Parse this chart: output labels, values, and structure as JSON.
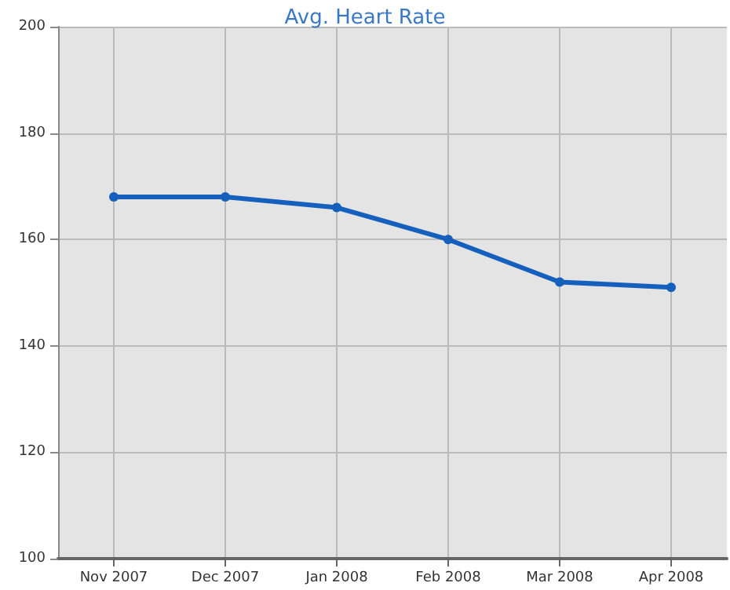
{
  "chart_data": {
    "type": "line",
    "title": "Avg. Heart Rate",
    "categories": [
      "Nov 2007",
      "Dec 2007",
      "Jan 2008",
      "Feb 2008",
      "Mar 2008",
      "Apr 2008"
    ],
    "series": [
      {
        "color": "#1560bd",
        "values": [
          168,
          168,
          166,
          160,
          152,
          151
        ]
      }
    ],
    "ylim": [
      100,
      200
    ],
    "yticks": [
      100,
      120,
      140,
      160,
      180,
      200
    ],
    "grid": true,
    "marker": "circle"
  }
}
